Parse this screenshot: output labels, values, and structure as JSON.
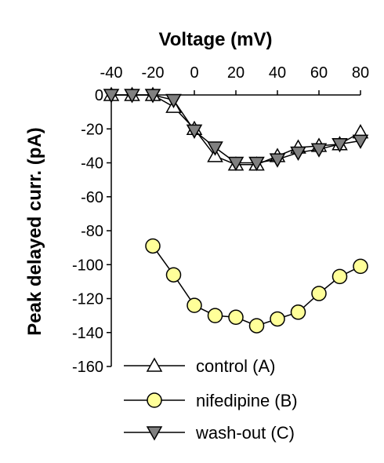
{
  "chart_data": {
    "type": "line",
    "title": "",
    "xlabel": "Voltage (mV)",
    "ylabel": "Peak delayed curr. (pA)",
    "xlim": [
      -40,
      80
    ],
    "ylim": [
      -160,
      0
    ],
    "x_ticks": [
      -40,
      -20,
      0,
      20,
      40,
      60,
      80
    ],
    "x_tick_labels": [
      "-40",
      "-20",
      "0",
      "20",
      "40",
      "60",
      "80"
    ],
    "y_ticks": [
      0,
      -20,
      -40,
      -60,
      -80,
      -100,
      -120,
      -140,
      -160
    ],
    "y_tick_labels": [
      "0",
      "-20",
      "-40",
      "-60",
      "-80",
      "-100",
      "-120",
      "-140",
      "-160"
    ],
    "x_axis_position": "top",
    "grid": false,
    "legend_position": "bottom-right",
    "series": [
      {
        "name": "control (A)",
        "marker": "triangle-up",
        "fill": "#ffffff",
        "stroke": "#000000",
        "x": [
          -40,
          -30,
          -20,
          -10,
          0,
          10,
          20,
          30,
          40,
          50,
          60,
          70,
          80
        ],
        "y": [
          0,
          0,
          0,
          -7,
          -20,
          -36,
          -41,
          -41,
          -36,
          -31,
          -30,
          -29,
          -22
        ]
      },
      {
        "name": "nifedipine (B)",
        "marker": "circle",
        "fill": "#ffff99",
        "stroke": "#000000",
        "x": [
          -20,
          -10,
          0,
          10,
          20,
          30,
          40,
          50,
          60,
          70,
          80
        ],
        "y": [
          -89,
          -106,
          -124,
          -130,
          -131,
          -136,
          -132,
          -128,
          -117,
          -107,
          -101
        ]
      },
      {
        "name": "wash-out (C)",
        "marker": "triangle-down",
        "fill": "#808080",
        "stroke": "#000000",
        "x": [
          -40,
          -30,
          -20,
          -10,
          0,
          10,
          20,
          30,
          40,
          50,
          60,
          70,
          80
        ],
        "y": [
          0,
          0,
          0,
          -3,
          -21,
          -31,
          -40,
          -40,
          -38,
          -34,
          -32,
          -29,
          -27
        ]
      }
    ]
  }
}
